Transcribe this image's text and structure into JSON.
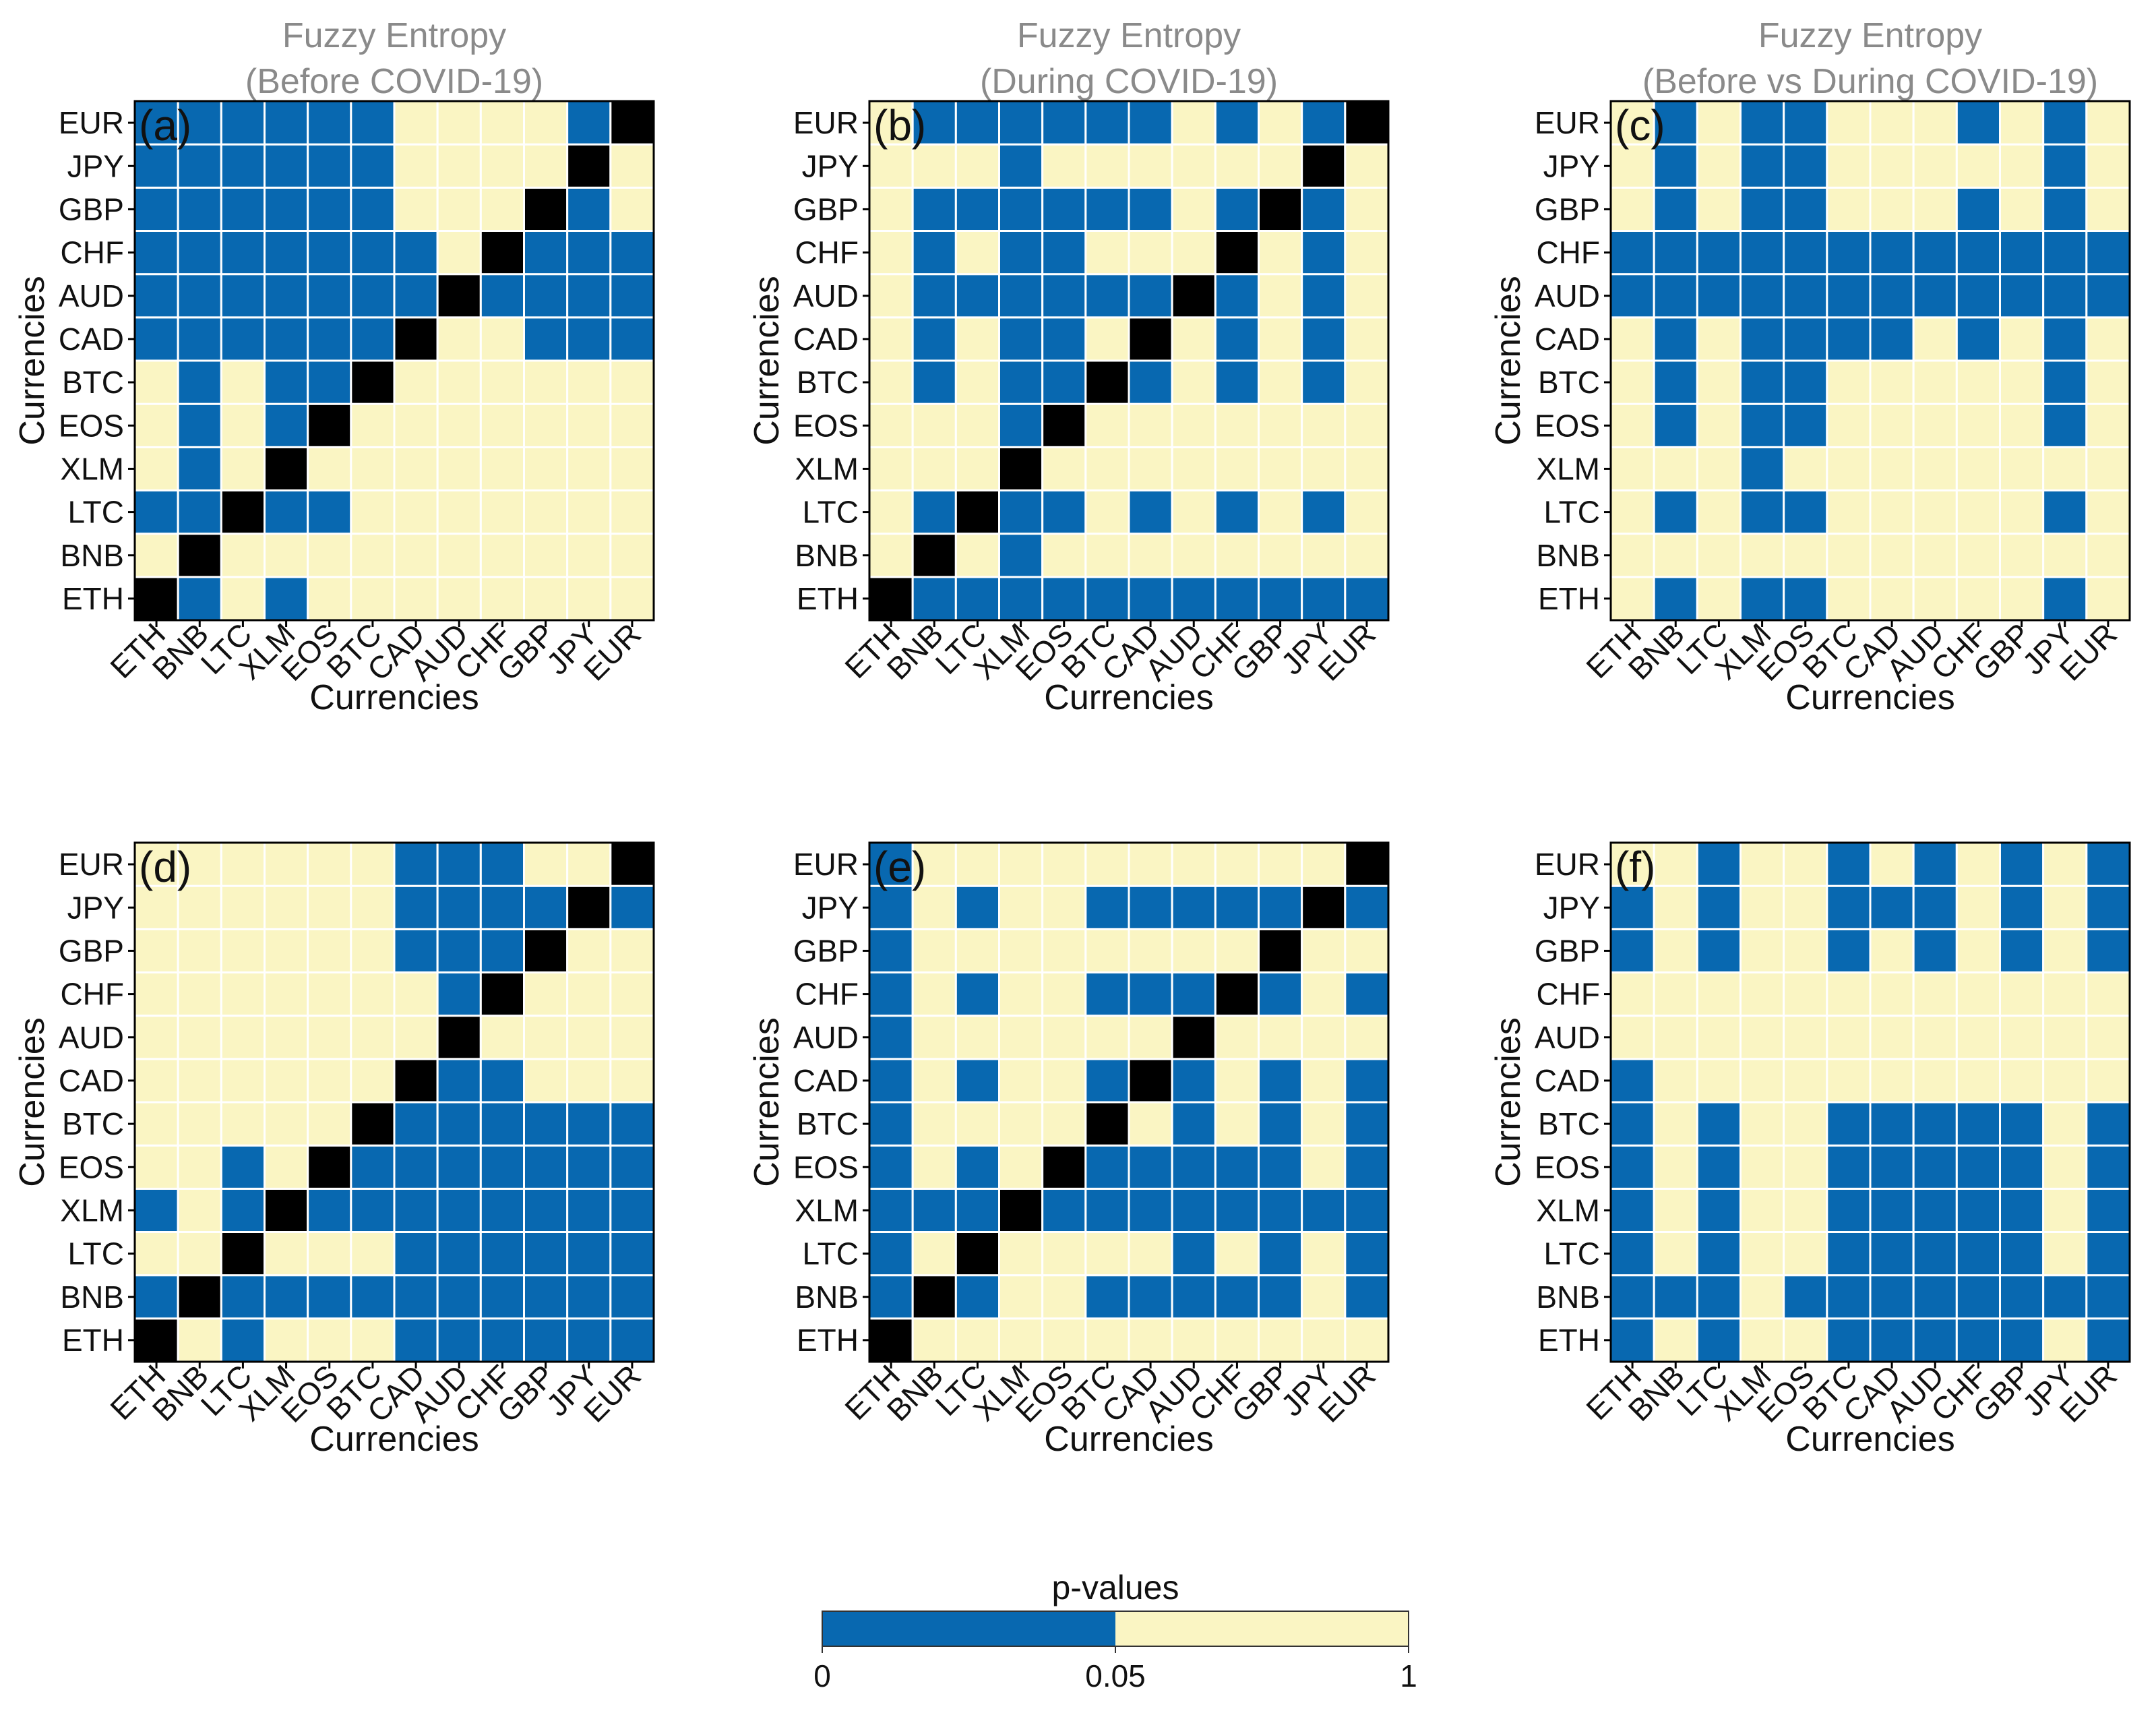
{
  "chart_data": [
    {
      "panel": "(a)",
      "type": "heatmap",
      "title_line1": "Fuzzy Entropy",
      "title_line2": "(Before COVID-19)",
      "xlabel": "Currencies",
      "ylabel": "Currencies",
      "x_categories": [
        "ETH",
        "BNB",
        "LTC",
        "XLM",
        "EOS",
        "BTC",
        "CAD",
        "AUD",
        "CHF",
        "GBP",
        "JPY",
        "EUR"
      ],
      "y_categories": [
        "ETH",
        "BNB",
        "LTC",
        "XLM",
        "EOS",
        "BTC",
        "CAD",
        "AUD",
        "CHF",
        "GBP",
        "JPY",
        "EUR"
      ],
      "cell_key": "S = p < 0.05 (blue), N = p >= 0.05 (beige), D = diagonal (black); rows listed from ETH (bottom) to EUR (top)",
      "cells": [
        "DSNSNNNNNNNN",
        "NDNNNNNNNNNN",
        "SSDSSNNNNNNN",
        "NSNDNNNNNNNN",
        "NSNSDNNNNNNN",
        "NSNSSDNNNNNN",
        "SSSSSSDNNSSS",
        "SSSSSSSDSSSS",
        "SSSSSSSNDSSS",
        "SSSSSSNNNDSN",
        "SSSSSSNNNNDN",
        "SSSSSSNNNNSD"
      ]
    },
    {
      "panel": "(b)",
      "type": "heatmap",
      "title_line1": "Fuzzy Entropy",
      "title_line2": "(During COVID-19)",
      "xlabel": "Currencies",
      "ylabel": "Currencies",
      "x_categories": [
        "ETH",
        "BNB",
        "LTC",
        "XLM",
        "EOS",
        "BTC",
        "CAD",
        "AUD",
        "CHF",
        "GBP",
        "JPY",
        "EUR"
      ],
      "y_categories": [
        "ETH",
        "BNB",
        "LTC",
        "XLM",
        "EOS",
        "BTC",
        "CAD",
        "AUD",
        "CHF",
        "GBP",
        "JPY",
        "EUR"
      ],
      "cells": [
        "DSSSSSSSSSSS",
        "NDNSNNNNNNNN",
        "NSDSSNSNSNSN",
        "NNNDNNNNNNNN",
        "NNNSDNNNNNNN",
        "NSNSSDSNSNSN",
        "NSNSSNDNSNSN",
        "NSSSSSSDSNSN",
        "NSNSSNNNDNSN",
        "NSSSSSSNSDSN",
        "NNNSNNNNNNDN",
        "NSSSSSSNSNSD"
      ]
    },
    {
      "panel": "(c)",
      "type": "heatmap",
      "title_line1": "Fuzzy Entropy",
      "title_line2": "(Before vs During COVID-19)",
      "xlabel": "Currencies",
      "ylabel": "Currencies",
      "x_categories": [
        "ETH",
        "BNB",
        "LTC",
        "XLM",
        "EOS",
        "BTC",
        "CAD",
        "AUD",
        "CHF",
        "GBP",
        "JPY",
        "EUR"
      ],
      "y_categories": [
        "ETH",
        "BNB",
        "LTC",
        "XLM",
        "EOS",
        "BTC",
        "CAD",
        "AUD",
        "CHF",
        "GBP",
        "JPY",
        "EUR"
      ],
      "cells": [
        "NSNSSNNNNNSN",
        "NNNNNNNNNNNN",
        "NSNSSNNNNNSN",
        "NNNSNNNNNNNN",
        "NSNSSNNNNNSN",
        "NSNSSNNNNNSN",
        "NSNSSSSNSNSN",
        "SSSSSSSSSSSS",
        "SSSSSSSSSSSS",
        "NSNSSNNNSNSN",
        "NSNSSNNNNNSN",
        "NSNSSNNNSNSN"
      ]
    },
    {
      "panel": "(d)",
      "type": "heatmap",
      "title_line1": "",
      "title_line2": "",
      "xlabel": "Currencies",
      "ylabel": "Currencies",
      "x_categories": [
        "ETH",
        "BNB",
        "LTC",
        "XLM",
        "EOS",
        "BTC",
        "CAD",
        "AUD",
        "CHF",
        "GBP",
        "JPY",
        "EUR"
      ],
      "y_categories": [
        "ETH",
        "BNB",
        "LTC",
        "XLM",
        "EOS",
        "BTC",
        "CAD",
        "AUD",
        "CHF",
        "GBP",
        "JPY",
        "EUR"
      ],
      "cells": [
        "DNSNNNSSSSSS",
        "SDSSSSSSSSSS",
        "NNDNNNSSSSSS",
        "SNSDSSSSSSSS",
        "NNSNDSSSSSSS",
        "NNNNNDSSSSSS",
        "NNNNNNDSSNNN",
        "NNNNNNNDNNNN",
        "NNNNNNNSDNNN",
        "NNNNNNSSSDNN",
        "NNNNNNSSSSDS",
        "NNNNNNSSSNND"
      ]
    },
    {
      "panel": "(e)",
      "type": "heatmap",
      "title_line1": "",
      "title_line2": "",
      "xlabel": "Currencies",
      "ylabel": "Currencies",
      "x_categories": [
        "ETH",
        "BNB",
        "LTC",
        "XLM",
        "EOS",
        "BTC",
        "CAD",
        "AUD",
        "CHF",
        "GBP",
        "JPY",
        "EUR"
      ],
      "y_categories": [
        "ETH",
        "BNB",
        "LTC",
        "XLM",
        "EOS",
        "BTC",
        "CAD",
        "AUD",
        "CHF",
        "GBP",
        "JPY",
        "EUR"
      ],
      "cells": [
        "DNNNNNNNNNNN",
        "SDSNNSSSSSNS",
        "SNDNNNNSNSNS",
        "SSSDSSSSSSSS",
        "SNSNDSSSSSNS",
        "SNNNNDNSNSNS",
        "SNSNNSDSNSNS",
        "SNNNNNNDNNNN",
        "SNSNNSSSDSNS",
        "SNNNNNNNNDNN",
        "SNSNNSSSSSDS",
        "SNNNNNNNNNND"
      ]
    },
    {
      "panel": "(f)",
      "type": "heatmap",
      "title_line1": "",
      "title_line2": "",
      "xlabel": "Currencies",
      "ylabel": "Currencies",
      "x_categories": [
        "ETH",
        "BNB",
        "LTC",
        "XLM",
        "EOS",
        "BTC",
        "CAD",
        "AUD",
        "CHF",
        "GBP",
        "JPY",
        "EUR"
      ],
      "y_categories": [
        "ETH",
        "BNB",
        "LTC",
        "XLM",
        "EOS",
        "BTC",
        "CAD",
        "AUD",
        "CHF",
        "GBP",
        "JPY",
        "EUR"
      ],
      "cells": [
        "SNSNNSSSSSNS",
        "SSSNSSSSSSSS",
        "SNSNNSSSSSNS",
        "SNSNNSSSSSNS",
        "SNSNNSSSSSNS",
        "SNSNNSSSSSNS",
        "SNNNNNNNNNNN",
        "NNNNNNNNNNNN",
        "NNNNNNNNNNNN",
        "SNSNNSNSNSNS",
        "SNSNNSSSNSNS",
        "NNSNNSNSNSNS"
      ]
    }
  ],
  "legend": {
    "title": "p-values",
    "ticks": [
      "0",
      "0.05",
      "1"
    ],
    "low_color": "#0868b0",
    "high_color": "#faf5c3"
  },
  "colors": {
    "significant": "#0868b0",
    "not_significant": "#faf5c3",
    "diagonal": "#000000",
    "grid": "#ffffff",
    "border": "#000000"
  }
}
